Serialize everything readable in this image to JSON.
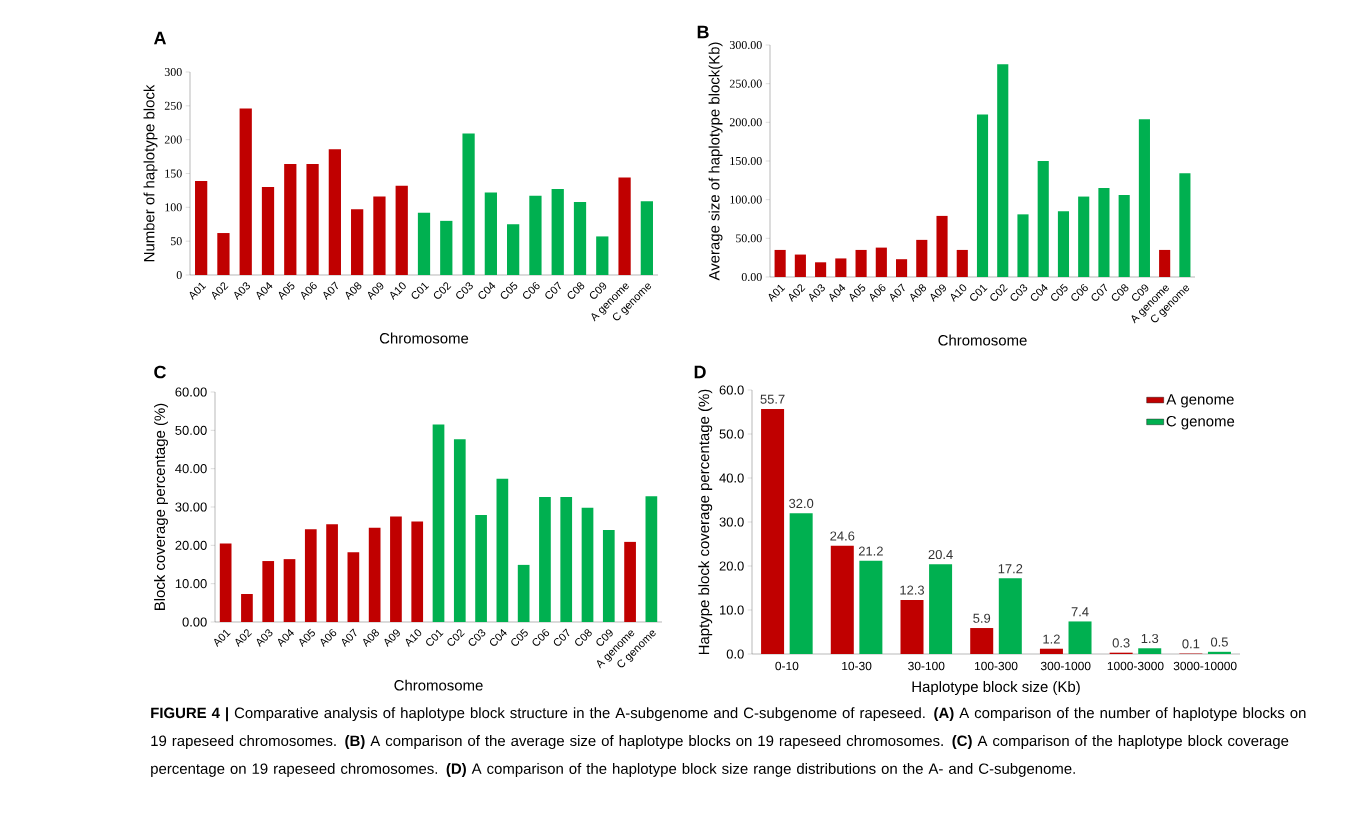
{
  "chart_data": [
    {
      "type": "bar",
      "title": "A",
      "xlabel": "Chromosome",
      "ylabel": "Number of haplotype block",
      "categories": [
        "A01",
        "A02",
        "A03",
        "A04",
        "A05",
        "A06",
        "A07",
        "A08",
        "A09",
        "A10",
        "C01",
        "C02",
        "C03",
        "C04",
        "C05",
        "C06",
        "C07",
        "C08",
        "C09",
        "A genome",
        "C genome"
      ],
      "values": [
        139,
        62,
        246,
        130,
        164,
        164,
        186,
        97,
        116,
        132,
        92,
        80,
        209,
        122,
        75,
        117,
        127,
        108,
        57,
        144,
        109
      ],
      "colors": [
        "#c00000",
        "#c00000",
        "#c00000",
        "#c00000",
        "#c00000",
        "#c00000",
        "#c00000",
        "#c00000",
        "#c00000",
        "#c00000",
        "#00b050",
        "#00b050",
        "#00b050",
        "#00b050",
        "#00b050",
        "#00b050",
        "#00b050",
        "#00b050",
        "#00b050",
        "#c00000",
        "#00b050"
      ],
      "ylim": [
        0,
        300
      ],
      "yticks": [
        0,
        50,
        100,
        150,
        200,
        250,
        300
      ],
      "annotations": [
        "**FIGURE 4 |** Comparative analysis of haplotype block structure in the A-subgenome and C-subgenome of rapeseed. **(A)** A comparison of the number of haplotype blocks on 19 rapeseed chromosomes. **(B)** A comparison of the average size of haplotype blocks on 19 rapeseed chromosomes. **(C)** A comparison of the haplotype block coverage percentage on 19 rapeseed chromosomes. **(D)** A comparison of the haplotype block size range distributions on the A- and C-subgenome."
      ]
    },
    {
      "type": "bar",
      "title": "B",
      "xlabel": "Chromosome",
      "ylabel": "Average size of haplotype block(Kb)",
      "categories": [
        "A01",
        "A02",
        "A03",
        "A04",
        "A05",
        "A06",
        "A07",
        "A08",
        "A09",
        "A10",
        "C01",
        "C02",
        "C03",
        "C04",
        "C05",
        "C06",
        "C07",
        "C08",
        "C09",
        "A genome",
        "C genome"
      ],
      "values": [
        35,
        29,
        19,
        24,
        35,
        38,
        23,
        48,
        79,
        35,
        210,
        275,
        81,
        150,
        85,
        104,
        115,
        106,
        204,
        35,
        134
      ],
      "colors": [
        "#c00000",
        "#c00000",
        "#c00000",
        "#c00000",
        "#c00000",
        "#c00000",
        "#c00000",
        "#c00000",
        "#c00000",
        "#c00000",
        "#00b050",
        "#00b050",
        "#00b050",
        "#00b050",
        "#00b050",
        "#00b050",
        "#00b050",
        "#00b050",
        "#00b050",
        "#c00000",
        "#00b050"
      ],
      "ylim": [
        0,
        300
      ],
      "yticks": [
        {
          "value": 0,
          "label": "0.00"
        },
        {
          "value": 50,
          "label": "50.00"
        },
        {
          "value": 100,
          "label": "100.00"
        },
        {
          "value": 150,
          "label": "150.00"
        },
        {
          "value": 200,
          "label": "200.00"
        },
        {
          "value": 250,
          "label": "250.00"
        },
        {
          "value": 300,
          "label": "300.00"
        }
      ]
    },
    {
      "type": "bar",
      "title": "C",
      "xlabel": "Chromosome",
      "ylabel": "Block coverage percentage (%)",
      "categories": [
        "A01",
        "A02",
        "A03",
        "A04",
        "A05",
        "A06",
        "A07",
        "A08",
        "A09",
        "A10",
        "C01",
        "C02",
        "C03",
        "C04",
        "C05",
        "C06",
        "C07",
        "C08",
        "C09",
        "A genome",
        "C genome"
      ],
      "values": [
        20.5,
        7.3,
        15.9,
        16.4,
        24.2,
        25.5,
        18.2,
        24.6,
        27.5,
        26.2,
        51.5,
        47.7,
        27.9,
        37.4,
        14.9,
        32.6,
        32.6,
        29.8,
        24.0,
        20.9,
        32.8
      ],
      "colors": [
        "#c00000",
        "#c00000",
        "#c00000",
        "#c00000",
        "#c00000",
        "#c00000",
        "#c00000",
        "#c00000",
        "#c00000",
        "#c00000",
        "#00b050",
        "#00b050",
        "#00b050",
        "#00b050",
        "#00b050",
        "#00b050",
        "#00b050",
        "#00b050",
        "#00b050",
        "#c00000",
        "#00b050"
      ],
      "ylim": [
        0,
        60
      ],
      "yticks": [
        {
          "value": 0,
          "label": "0.00"
        },
        {
          "value": 10,
          "label": "10.00"
        },
        {
          "value": 20,
          "label": "20.00"
        },
        {
          "value": 30,
          "label": "30.00"
        },
        {
          "value": 40,
          "label": "40.00"
        },
        {
          "value": 50,
          "label": "50.00"
        },
        {
          "value": 60,
          "label": "60.00"
        }
      ]
    },
    {
      "type": "bar",
      "title": "D",
      "xlabel": "Haplotype block size (Kb)",
      "ylabel": "Haptype block coverage percentage (%)",
      "categories": [
        "0-10",
        "10-30",
        "30-100",
        "100-300",
        "300-1000",
        "1000-3000",
        "3000-10000"
      ],
      "series": [
        {
          "name": "A genome",
          "color": "#c00000",
          "values": [
            55.7,
            24.6,
            12.3,
            5.9,
            1.2,
            0.3,
            0.1
          ],
          "value_labels": [
            "55.7",
            "24.6",
            "12.3",
            "5.9",
            "1.2",
            "0.3",
            "0.1"
          ]
        },
        {
          "name": "C genome",
          "color": "#00b050",
          "values": [
            32.0,
            21.2,
            20.4,
            17.2,
            7.4,
            1.3,
            0.5
          ],
          "value_labels": [
            "32.0",
            "21.2",
            "20.4",
            "17.2",
            "7.4",
            "1.3",
            "0.5"
          ]
        }
      ],
      "legend": "top right",
      "ylim": [
        0,
        60
      ],
      "yticks": [
        {
          "value": 0,
          "label": "0.0"
        },
        {
          "value": 10,
          "label": "10.0"
        },
        {
          "value": 20,
          "label": "20.0"
        },
        {
          "value": 30,
          "label": "30.0"
        },
        {
          "value": 40,
          "label": "40.0"
        },
        {
          "value": 50,
          "label": "50.0"
        },
        {
          "value": 60,
          "label": "60.0"
        }
      ]
    }
  ]
}
